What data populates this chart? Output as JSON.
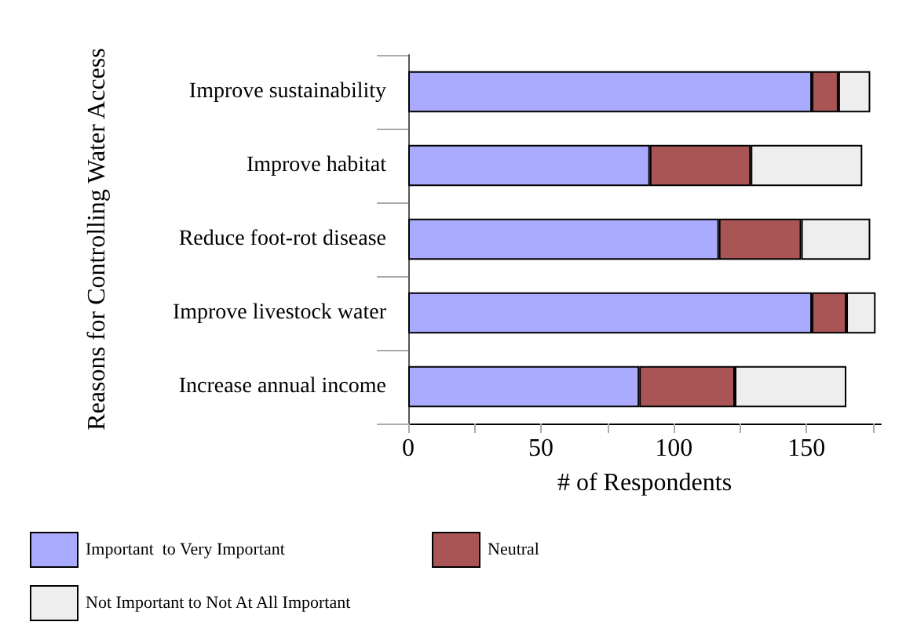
{
  "chart_data": {
    "type": "bar",
    "orientation": "horizontal",
    "stacked": true,
    "xlabel": "# of Respondents",
    "ylabel": "Reasons for Controlling Water Access",
    "categories": [
      "Improve sustainability",
      "Improve habitat",
      "Reduce foot-rot disease",
      "Improve livestock water",
      "Increase annual income"
    ],
    "series": [
      {
        "name": "Important  to Very Important",
        "color": "#aaaaff",
        "values": [
          152,
          91,
          117,
          152,
          87
        ]
      },
      {
        "name": "Neutral",
        "color": "#aa5555",
        "values": [
          10,
          38,
          31,
          13,
          36
        ]
      },
      {
        "name": "Not Important to Not At All Important",
        "color": "#eeeeee",
        "values": [
          12,
          42,
          26,
          11,
          42
        ]
      }
    ],
    "xlim": [
      0,
      178
    ],
    "xticks": [
      0,
      {
        "value": 25,
        "label": null
      },
      50,
      {
        "value": 75,
        "label": null
      },
      100,
      {
        "value": 125,
        "label": null
      },
      150,
      {
        "value": 175,
        "label": null
      }
    ],
    "legend": "bottom"
  }
}
